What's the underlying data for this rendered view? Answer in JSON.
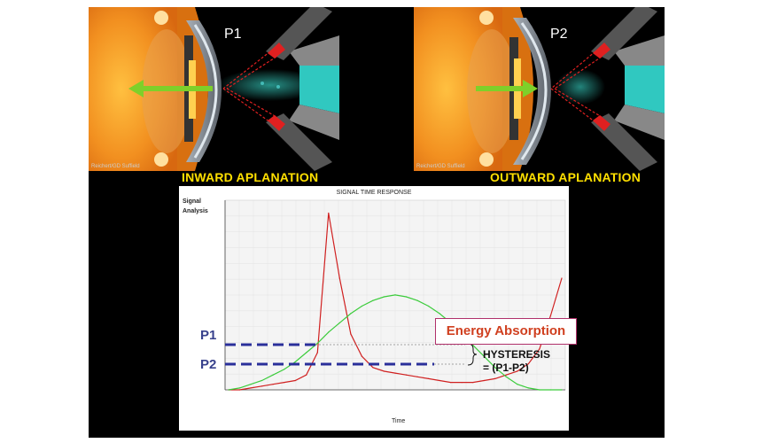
{
  "panels": {
    "left": {
      "label": "P1",
      "caption": "INWARD APLANATION",
      "copyright": "Reichert/GD Suffield"
    },
    "right": {
      "label": "P2",
      "caption": "OUTWARD APLANATION",
      "copyright": "Reichert/GD Suffield"
    }
  },
  "chart": {
    "title": "SIGNAL TIME RESPONSE",
    "ylabel_line1": "Signal",
    "ylabel_line2": "Analysis",
    "xlabel": "Time"
  },
  "annotations": {
    "energy": "Energy Absorption",
    "p1": "P1",
    "p2": "P2",
    "hysteresis_line1": "HYSTERESIS",
    "hysteresis_line2": "= (P1-P2)"
  },
  "colors": {
    "signal": "#d02020",
    "pressure": "#3ccc3c",
    "dashed": "#2a2f9a",
    "caption": "#ffe000"
  },
  "chart_data": {
    "type": "line",
    "series": [
      {
        "values": [
          0,
          0,
          1,
          2,
          3,
          4,
          5,
          8,
          20,
          95,
          60,
          30,
          18,
          12,
          10,
          9,
          8,
          7,
          6,
          5,
          4,
          4,
          4,
          5,
          6,
          8,
          10,
          14,
          22,
          40,
          60
        ]
      },
      {
        "values": [
          0,
          1,
          3,
          5,
          8,
          11,
          15,
          20,
          25,
          31,
          36,
          41,
          45,
          48,
          50,
          51,
          50,
          48,
          45,
          41,
          36,
          30,
          24,
          18,
          12,
          7,
          3,
          1,
          0,
          0,
          0
        ]
      }
    ],
    "grid": true
  }
}
